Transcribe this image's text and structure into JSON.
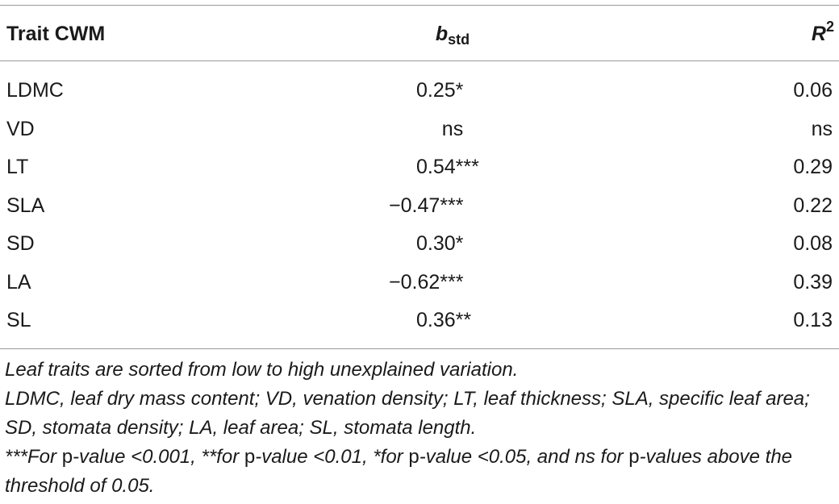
{
  "table": {
    "headers": {
      "col1": "Trait CWM",
      "col2_main": "b",
      "col2_sub": "std",
      "col3_main": "R",
      "col3_sup": "2"
    },
    "rows": [
      {
        "trait": "LDMC",
        "b_std": "0.25*",
        "r2": "0.06"
      },
      {
        "trait": "VD",
        "b_std": "ns",
        "r2": "ns"
      },
      {
        "trait": "LT",
        "b_std": "0.54***",
        "r2": "0.29"
      },
      {
        "trait": "SLA",
        "b_std": "−0.47***",
        "r2": "0.22"
      },
      {
        "trait": "SD",
        "b_std": "0.30*",
        "r2": "0.08"
      },
      {
        "trait": "LA",
        "b_std": "−0.62***",
        "r2": "0.39"
      },
      {
        "trait": "SL",
        "b_std": "0.36**",
        "r2": "0.13"
      }
    ]
  },
  "notes": {
    "line1": "Leaf traits are sorted from low to high unexplained variation.",
    "line2": "LDMC, leaf dry mass content; VD, venation density; LT, leaf thickness; SLA, specific leaf area; SD, stomata density; LA, leaf area; SL, stomata length.",
    "line3": {
      "a": "***For ",
      "b": "p",
      "c": "-value <0.001, **for ",
      "d": "p",
      "e": "-value <0.01, *for ",
      "f": "p",
      "g": "-value <0.05, and ns for ",
      "h": "p",
      "i": "-values above the threshold of 0.05."
    }
  }
}
